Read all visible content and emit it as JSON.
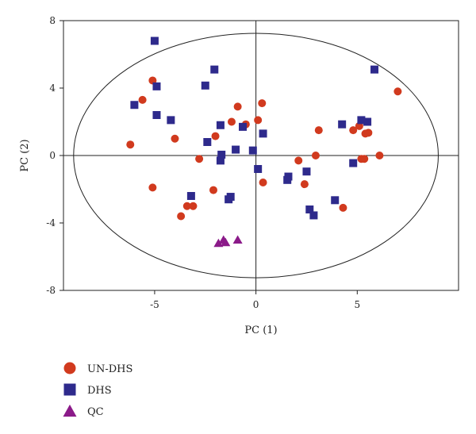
{
  "chart_data": {
    "type": "scatter",
    "title": "",
    "xlabel": "PC (1)",
    "ylabel": "PC (2)",
    "xlim": [
      -9.5,
      10
    ],
    "ylim": [
      -8,
      8
    ],
    "x_ticks": [
      -5,
      0,
      5
    ],
    "y_ticks": [
      -8,
      -4,
      0,
      4,
      8
    ],
    "x_tick_labels": [
      "-5",
      "0",
      "5"
    ],
    "y_tick_labels": [
      "-8",
      "-4",
      "0",
      "4",
      "8"
    ],
    "grid": false,
    "legend_position": "bottom-left",
    "ellipse": {
      "center": [
        0,
        0
      ],
      "rx": 9.0,
      "ry": 7.25
    },
    "series": [
      {
        "name": "UN-DHS",
        "marker": "circle",
        "color": "#d13a1e",
        "points": [
          [
            -6.2,
            0.65
          ],
          [
            -5.6,
            3.3
          ],
          [
            -5.1,
            4.45
          ],
          [
            -5.1,
            -1.9
          ],
          [
            -4.0,
            1.0
          ],
          [
            -3.7,
            -3.6
          ],
          [
            -3.4,
            -3.0
          ],
          [
            -3.1,
            -3.0
          ],
          [
            -2.8,
            -0.2
          ],
          [
            -2.1,
            -2.05
          ],
          [
            -2.0,
            1.15
          ],
          [
            -1.7,
            0.0
          ],
          [
            -1.2,
            2.0
          ],
          [
            -0.9,
            2.9
          ],
          [
            -0.5,
            1.85
          ],
          [
            0.1,
            2.1
          ],
          [
            0.3,
            3.1
          ],
          [
            0.35,
            -1.6
          ],
          [
            2.1,
            -0.3
          ],
          [
            2.4,
            -1.7
          ],
          [
            2.95,
            0.0
          ],
          [
            3.1,
            1.5
          ],
          [
            4.3,
            -3.1
          ],
          [
            4.8,
            1.5
          ],
          [
            5.1,
            1.75
          ],
          [
            5.2,
            -0.2
          ],
          [
            5.35,
            -0.2
          ],
          [
            5.4,
            1.3
          ],
          [
            5.55,
            1.35
          ],
          [
            6.1,
            0.0
          ],
          [
            7.0,
            3.8
          ]
        ]
      },
      {
        "name": "DHS",
        "marker": "square",
        "color": "#2e2a8c",
        "points": [
          [
            -5.0,
            6.8
          ],
          [
            -6.0,
            3.0
          ],
          [
            -4.9,
            4.1
          ],
          [
            -4.9,
            2.4
          ],
          [
            -4.2,
            2.1
          ],
          [
            -3.2,
            -2.4
          ],
          [
            -2.5,
            4.15
          ],
          [
            -2.4,
            0.8
          ],
          [
            -2.05,
            5.1
          ],
          [
            -1.75,
            1.8
          ],
          [
            -1.75,
            -0.3
          ],
          [
            -1.7,
            0.05
          ],
          [
            -1.35,
            -2.6
          ],
          [
            -1.25,
            -2.45
          ],
          [
            -1.0,
            0.35
          ],
          [
            -0.65,
            1.7
          ],
          [
            -0.15,
            0.3
          ],
          [
            0.1,
            -0.8
          ],
          [
            0.35,
            1.3
          ],
          [
            1.55,
            -1.45
          ],
          [
            1.6,
            -1.25
          ],
          [
            2.5,
            -0.95
          ],
          [
            2.65,
            -3.2
          ],
          [
            2.85,
            -3.55
          ],
          [
            3.9,
            -2.65
          ],
          [
            4.25,
            1.85
          ],
          [
            4.8,
            -0.45
          ],
          [
            5.2,
            2.1
          ],
          [
            5.5,
            2.0
          ],
          [
            5.85,
            5.1
          ]
        ]
      },
      {
        "name": "QC",
        "marker": "triangle",
        "color": "#8b1a89",
        "points": [
          [
            -1.85,
            -5.2
          ],
          [
            -1.6,
            -5.0
          ],
          [
            -1.5,
            -5.15
          ],
          [
            -0.9,
            -5.0
          ]
        ]
      }
    ]
  }
}
